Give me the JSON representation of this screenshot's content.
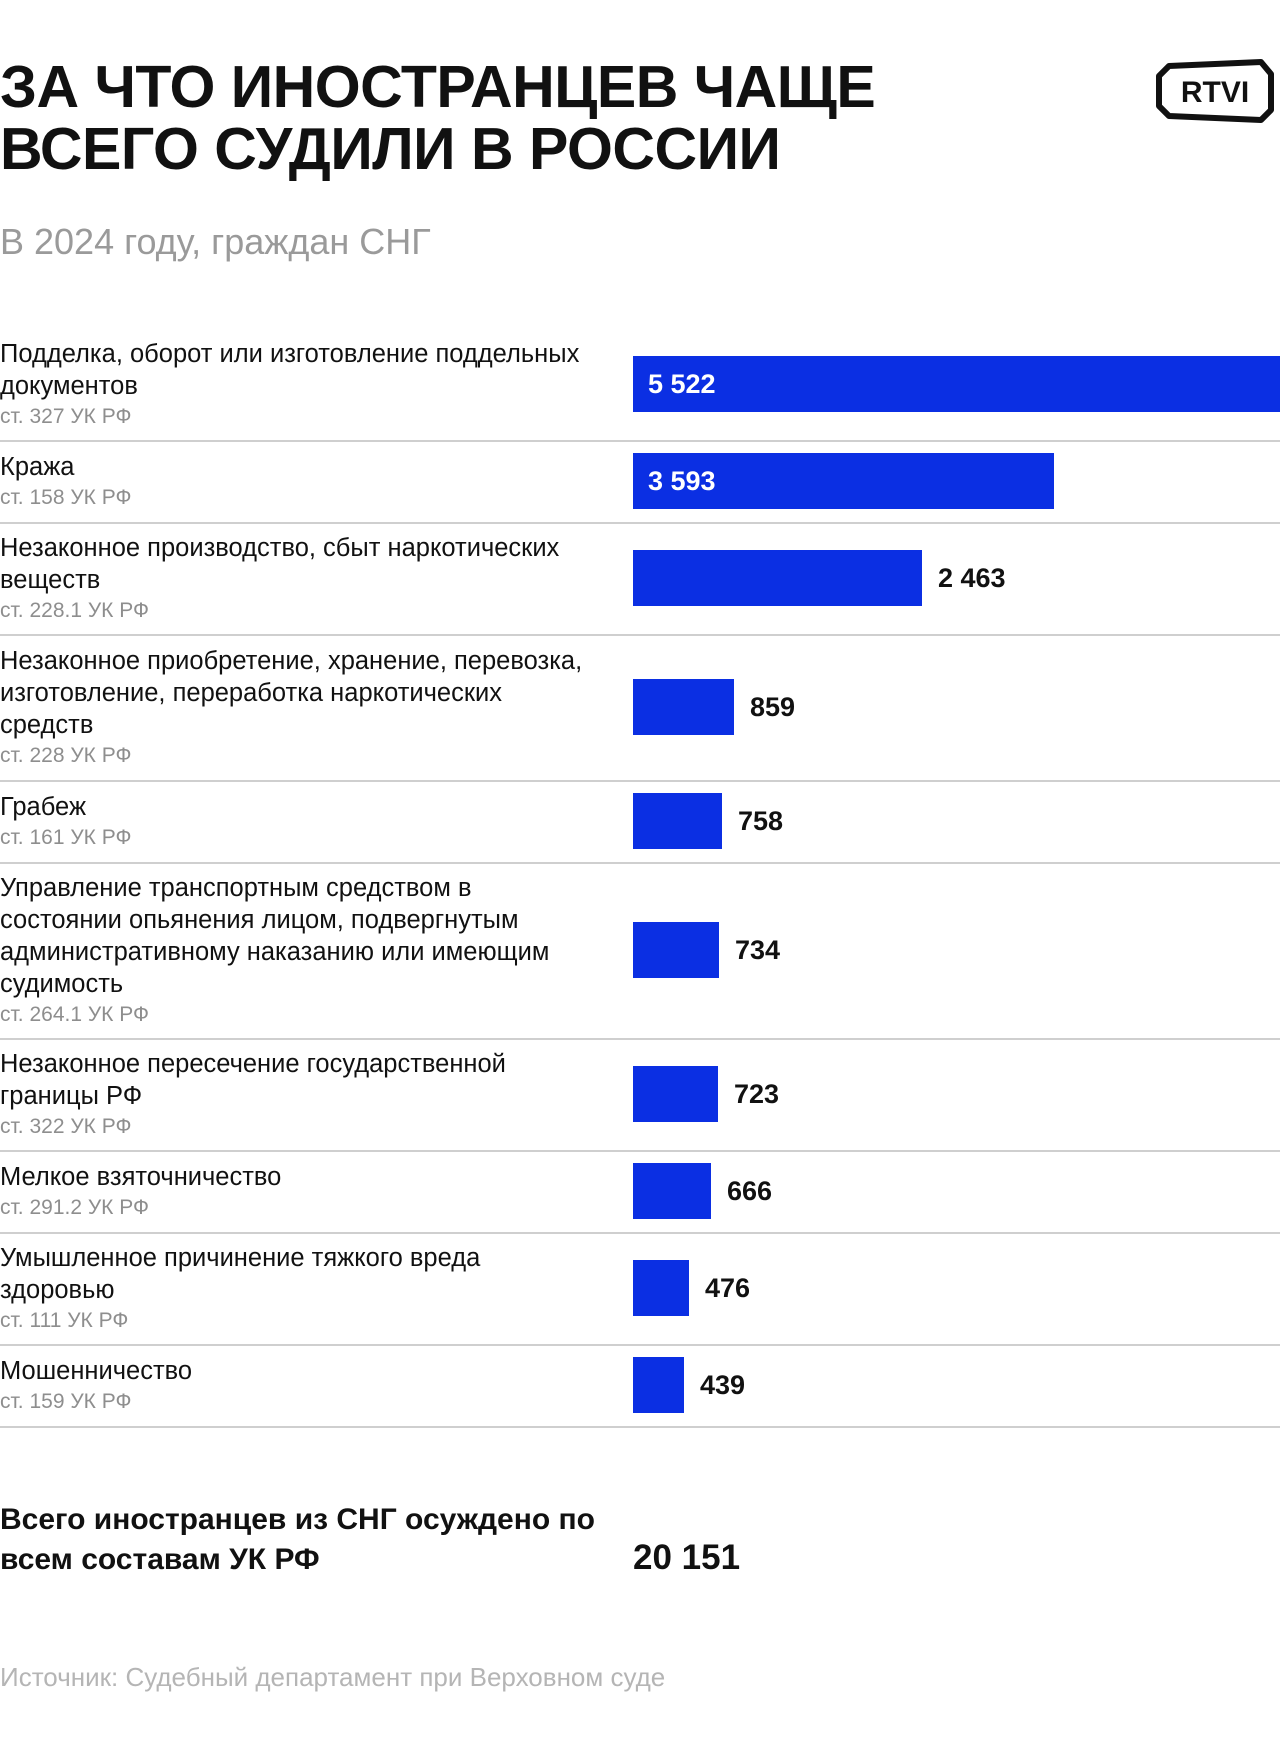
{
  "header": {
    "title": "ЗА ЧТО ИНОСТРАНЦЕВ ЧАЩЕ ВСЕГО СУДИЛИ В РОССИИ",
    "subtitle": "В 2024 году, граждан СНГ",
    "logo_text": "RTVI"
  },
  "chart_data": {
    "type": "bar",
    "orientation": "horizontal",
    "title": "ЗА ЧТО ИНОСТРАНЦЕВ ЧАЩЕ ВСЕГО СУДИЛИ В РОССИИ",
    "subtitle": "В 2024 году, граждан СНГ",
    "bar_color": "#0b2fe3",
    "categories": [
      {
        "label": "Подделка, оборот или изготовление поддельных документов",
        "article": "ст. 327 УК РФ",
        "value": 5522,
        "value_text": "5 522"
      },
      {
        "label": "Кража",
        "article": "ст. 158 УК РФ",
        "value": 3593,
        "value_text": "3 593"
      },
      {
        "label": "Незаконное производство, сбыт наркотических веществ",
        "article": "ст. 228.1 УК РФ",
        "value": 2463,
        "value_text": "2 463"
      },
      {
        "label": "Незаконное приобретение, хранение, перевозка, изготовление, переработка наркотических средств",
        "article": "ст. 228 УК РФ",
        "value": 859,
        "value_text": "859"
      },
      {
        "label": "Грабеж",
        "article": "ст. 161 УК РФ",
        "value": 758,
        "value_text": "758"
      },
      {
        "label": "Управление транспортным средством в состоянии опьянения лицом, подвергнутым административному наказанию или имеющим судимость",
        "article": "ст. 264.1 УК РФ",
        "value": 734,
        "value_text": "734"
      },
      {
        "label": "Незаконное пересечение государственной границы РФ",
        "article": "ст. 322 УК РФ",
        "value": 723,
        "value_text": "723"
      },
      {
        "label": "Мелкое взяточничество",
        "article": "ст. 291.2 УК РФ",
        "value": 666,
        "value_text": "666"
      },
      {
        "label": "Умышленное причинение тяжкого вреда здоровью",
        "article": "ст. 111 УК РФ",
        "value": 476,
        "value_text": "476"
      },
      {
        "label": "Мошенничество",
        "article": "ст. 159 УК РФ",
        "value": 439,
        "value_text": "439"
      }
    ]
  },
  "total": {
    "label": "Всего иностранцев из СНГ осуждено по всем составам УК РФ",
    "value": "20 151"
  },
  "footer": {
    "source": "Источник: Судебный департамент при Верховном суде"
  }
}
